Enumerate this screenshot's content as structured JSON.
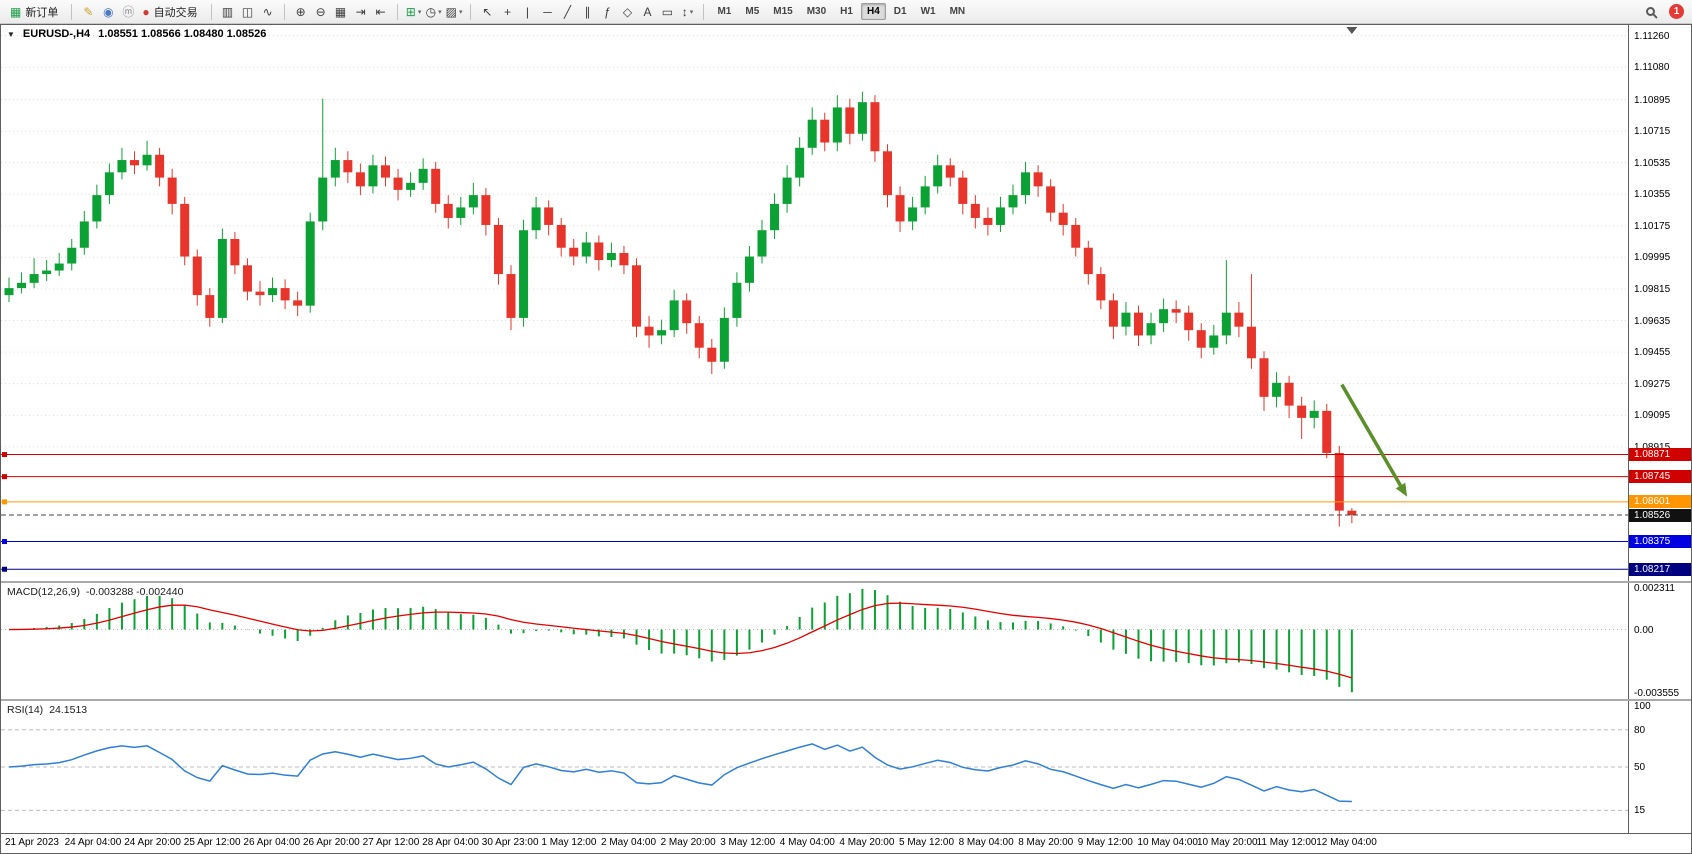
{
  "toolbar": {
    "dropdown_glyph": "▾",
    "groups": [
      {
        "name": "trade",
        "items": [
          {
            "type": "button",
            "name": "new-order-button",
            "icon": "order-form-icon",
            "glyph": "▦",
            "glyph_color": "#1f9d4b",
            "label": "新订单"
          }
        ]
      },
      {
        "name": "services",
        "items": [
          {
            "type": "icon",
            "name": "metaeditor-icon",
            "glyph": "✎",
            "glyph_color": "#c9a227"
          },
          {
            "type": "icon",
            "name": "market-watch-icon",
            "glyph": "◉",
            "glyph_color": "#4a79c6"
          },
          {
            "type": "icon",
            "name": "mql5-community-icon",
            "glyph": "ⓜ",
            "glyph_color": "#8a8a8a"
          },
          {
            "type": "button",
            "name": "auto-trading-button",
            "icon": "auto-trading-icon",
            "glyph": "●",
            "glyph_color": "#d23b34",
            "label": "自动交易"
          }
        ]
      },
      {
        "name": "chart-type",
        "items": [
          {
            "type": "icon",
            "name": "bar-chart-icon",
            "glyph": "▥"
          },
          {
            "type": "icon",
            "name": "candlestick-chart-icon",
            "glyph": "◫"
          },
          {
            "type": "icon",
            "name": "line-chart-icon",
            "glyph": "∿"
          }
        ]
      },
      {
        "name": "zoom-layout",
        "items": [
          {
            "type": "icon",
            "name": "zoom-in-icon",
            "glyph": "⊕"
          },
          {
            "type": "icon",
            "name": "zoom-out-icon",
            "glyph": "⊖"
          },
          {
            "type": "icon",
            "name": "tile-windows-icon",
            "glyph": "▦"
          },
          {
            "type": "icon",
            "name": "auto-scroll-icon",
            "glyph": "⇥"
          },
          {
            "type": "icon",
            "name": "chart-shift-icon",
            "glyph": "⇤"
          }
        ]
      },
      {
        "name": "dropdowns",
        "items": [
          {
            "type": "icon",
            "name": "indicators-icon",
            "glyph": "⊞",
            "glyph_color": "#1f9d4b",
            "dropdown": true
          },
          {
            "type": "icon",
            "name": "periods-icon",
            "glyph": "◷",
            "dropdown": true
          },
          {
            "type": "icon",
            "name": "templates-icon",
            "glyph": "▨",
            "dropdown": true
          }
        ]
      },
      {
        "name": "objects",
        "items": [
          {
            "type": "icon",
            "name": "cursor-icon",
            "glyph": "↖"
          },
          {
            "type": "icon",
            "name": "crosshair-icon",
            "glyph": "+"
          },
          {
            "type": "icon",
            "name": "vertical-line-icon",
            "glyph": "|"
          },
          {
            "type": "icon",
            "name": "horizontal-line-icon",
            "glyph": "─"
          },
          {
            "type": "icon",
            "name": "trendline-icon",
            "glyph": "╱"
          },
          {
            "type": "icon",
            "name": "equidistant-channel-icon",
            "glyph": "∥"
          },
          {
            "type": "icon",
            "name": "fibonacci-icon",
            "glyph": "ƒ"
          },
          {
            "type": "icon",
            "name": "shapes-icon",
            "glyph": "◇"
          },
          {
            "type": "icon",
            "name": "text-icon",
            "glyph": "A"
          },
          {
            "type": "icon",
            "name": "text-label-icon",
            "glyph": "▭"
          },
          {
            "type": "icon",
            "name": "arrows-icon",
            "glyph": "↕",
            "dropdown": true
          }
        ]
      }
    ],
    "timeframes": {
      "active": "H4",
      "items": [
        "M1",
        "M5",
        "M15",
        "M30",
        "H1",
        "H4",
        "D1",
        "W1",
        "MN"
      ]
    },
    "right": [
      {
        "type": "icon",
        "name": "search-icon",
        "glyph": "css-magnifier"
      },
      {
        "type": "badge",
        "name": "notifications-badge",
        "text": "1",
        "color": "#e53935"
      }
    ]
  },
  "chart": {
    "collapse_glyph": "▼",
    "title_symbol": "EURUSD-,H4",
    "title_ohlc": "1.08551 1.08566 1.08480 1.08526"
  },
  "chart_data": {
    "type": "candlestick",
    "symbol": "EURUSD-",
    "timeframe": "H4",
    "colors": {
      "up": "#0CA134",
      "down": "#E8352C",
      "grid": "#dcdcdc",
      "macd_hist": "#0CA134",
      "macd_signal": "#E60000",
      "rsi_line": "#2F7ED8"
    },
    "price_pane": {
      "ylim": [
        1.0815,
        1.1132
      ],
      "y_ticks": [
        "1.11260",
        "1.11080",
        "1.10895",
        "1.10715",
        "1.10535",
        "1.10355",
        "1.10175",
        "1.09995",
        "1.09815",
        "1.09635",
        "1.09455",
        "1.09275",
        "1.09095",
        "1.08915"
      ],
      "levels": [
        {
          "price": 1.08871,
          "label": "1.08871",
          "color": "#D10000"
        },
        {
          "price": 1.08745,
          "label": "1.08745",
          "color": "#D10000"
        },
        {
          "price": 1.08601,
          "label": "1.08601",
          "color": "#FF9500"
        },
        {
          "price": 1.08526,
          "label": "1.08526",
          "color": "#111111",
          "style": "current"
        },
        {
          "price": 1.08375,
          "label": "1.08375",
          "color": "#0000E0"
        },
        {
          "price": 1.08217,
          "label": "1.08217",
          "color": "#000080"
        }
      ],
      "arrow": {
        "from_bar": 106.2,
        "from_price": 1.0927,
        "to_bar": 111.4,
        "to_price": 1.0863,
        "color": "#5a8f29"
      },
      "shift_marker_bar": 107,
      "candles": [
        [
          1.0978,
          1.0988,
          1.0974,
          1.0982
        ],
        [
          1.0982,
          1.0991,
          1.0979,
          1.0985
        ],
        [
          1.0985,
          1.0999,
          1.0982,
          1.099
        ],
        [
          1.099,
          1.0998,
          1.0986,
          1.0992
        ],
        [
          1.0992,
          1.1002,
          1.0989,
          1.0996
        ],
        [
          1.0996,
          1.101,
          1.0992,
          1.1005
        ],
        [
          1.1005,
          1.1026,
          1.1001,
          1.102
        ],
        [
          1.102,
          1.1041,
          1.1016,
          1.1035
        ],
        [
          1.1035,
          1.1053,
          1.103,
          1.1048
        ],
        [
          1.1048,
          1.1062,
          1.1044,
          1.1055
        ],
        [
          1.1055,
          1.106,
          1.1047,
          1.1052
        ],
        [
          1.1052,
          1.1066,
          1.1049,
          1.1058
        ],
        [
          1.1058,
          1.1062,
          1.104,
          1.1045
        ],
        [
          1.1045,
          1.105,
          1.1024,
          1.103
        ],
        [
          1.103,
          1.1034,
          1.0995,
          1.1
        ],
        [
          1.1,
          1.1004,
          1.0972,
          1.0978
        ],
        [
          1.0978,
          1.0982,
          1.096,
          1.0965
        ],
        [
          1.0965,
          1.1016,
          1.0962,
          1.101
        ],
        [
          1.101,
          1.1014,
          1.099,
          1.0995
        ],
        [
          1.0995,
          1.0999,
          1.0975,
          1.098
        ],
        [
          1.098,
          1.0986,
          1.0972,
          1.0978
        ],
        [
          1.0978,
          1.0988,
          1.0974,
          1.0982
        ],
        [
          1.0982,
          1.0987,
          1.097,
          1.0975
        ],
        [
          1.0975,
          1.098,
          1.0966,
          1.0972
        ],
        [
          1.0972,
          1.1025,
          1.0968,
          1.102
        ],
        [
          1.102,
          1.109,
          1.1015,
          1.1045
        ],
        [
          1.1045,
          1.1062,
          1.104,
          1.1055
        ],
        [
          1.1055,
          1.106,
          1.1042,
          1.1048
        ],
        [
          1.1048,
          1.1053,
          1.1035,
          1.104
        ],
        [
          1.104,
          1.1058,
          1.1036,
          1.1052
        ],
        [
          1.1052,
          1.1057,
          1.104,
          1.1045
        ],
        [
          1.1045,
          1.105,
          1.1032,
          1.1038
        ],
        [
          1.1038,
          1.1048,
          1.1034,
          1.1042
        ],
        [
          1.1042,
          1.1056,
          1.1038,
          1.105
        ],
        [
          1.105,
          1.1054,
          1.1025,
          1.103
        ],
        [
          1.103,
          1.1035,
          1.1016,
          1.1022
        ],
        [
          1.1022,
          1.1034,
          1.1018,
          1.1028
        ],
        [
          1.1028,
          1.1042,
          1.1024,
          1.1035
        ],
        [
          1.1035,
          1.1039,
          1.1012,
          1.1018
        ],
        [
          1.1018,
          1.1022,
          1.0984,
          1.099
        ],
        [
          1.099,
          1.0995,
          1.0958,
          1.0965
        ],
        [
          1.0965,
          1.1021,
          1.096,
          1.1015
        ],
        [
          1.1015,
          1.1034,
          1.101,
          1.1028
        ],
        [
          1.1028,
          1.1032,
          1.1012,
          1.1018
        ],
        [
          1.1018,
          1.1022,
          1.1,
          1.1005
        ],
        [
          1.1005,
          1.101,
          1.0995,
          1.1
        ],
        [
          1.1,
          1.1014,
          1.0996,
          1.1008
        ],
        [
          1.1008,
          1.1012,
          1.0992,
          1.0998
        ],
        [
          1.0998,
          1.1008,
          1.0994,
          1.1002
        ],
        [
          1.1002,
          1.1006,
          1.099,
          1.0995
        ],
        [
          1.0995,
          1.0999,
          1.0954,
          1.096
        ],
        [
          1.096,
          1.0966,
          1.0948,
          1.0955
        ],
        [
          1.0955,
          1.0964,
          1.095,
          1.0958
        ],
        [
          1.0958,
          1.0981,
          1.0954,
          1.0975
        ],
        [
          1.0975,
          1.0979,
          1.0956,
          1.0962
        ],
        [
          1.0962,
          1.0966,
          1.0942,
          1.0948
        ],
        [
          1.0948,
          1.0953,
          1.0933,
          1.094
        ],
        [
          1.094,
          1.0971,
          1.0936,
          1.0965
        ],
        [
          1.0965,
          1.0991,
          1.096,
          1.0985
        ],
        [
          1.0985,
          1.1006,
          1.098,
          1.1
        ],
        [
          1.1,
          1.1021,
          1.0996,
          1.1015
        ],
        [
          1.1015,
          1.1036,
          1.101,
          1.103
        ],
        [
          1.103,
          1.1052,
          1.1025,
          1.1045
        ],
        [
          1.1045,
          1.1068,
          1.104,
          1.1062
        ],
        [
          1.1062,
          1.1085,
          1.1058,
          1.1078
        ],
        [
          1.1078,
          1.1082,
          1.106,
          1.1065
        ],
        [
          1.1065,
          1.1092,
          1.106,
          1.1085
        ],
        [
          1.1085,
          1.109,
          1.1064,
          1.107
        ],
        [
          1.107,
          1.1094,
          1.1066,
          1.1088
        ],
        [
          1.1088,
          1.1092,
          1.1054,
          1.106
        ],
        [
          1.106,
          1.1064,
          1.1028,
          1.1035
        ],
        [
          1.1035,
          1.104,
          1.1014,
          1.102
        ],
        [
          1.102,
          1.1034,
          1.1015,
          1.1028
        ],
        [
          1.1028,
          1.1046,
          1.1024,
          1.104
        ],
        [
          1.104,
          1.1058,
          1.1036,
          1.1052
        ],
        [
          1.1052,
          1.1056,
          1.104,
          1.1045
        ],
        [
          1.1045,
          1.1049,
          1.1024,
          1.103
        ],
        [
          1.103,
          1.1035,
          1.1016,
          1.1022
        ],
        [
          1.1022,
          1.1028,
          1.1012,
          1.1018
        ],
        [
          1.1018,
          1.1034,
          1.1014,
          1.1028
        ],
        [
          1.1028,
          1.1041,
          1.1024,
          1.1035
        ],
        [
          1.1035,
          1.1054,
          1.103,
          1.1048
        ],
        [
          1.1048,
          1.1052,
          1.1034,
          1.104
        ],
        [
          1.104,
          1.1044,
          1.102,
          1.1025
        ],
        [
          1.1025,
          1.103,
          1.1012,
          1.1018
        ],
        [
          1.1018,
          1.1022,
          1.1,
          1.1005
        ],
        [
          1.1005,
          1.1009,
          1.0984,
          1.099
        ],
        [
          1.099,
          1.0994,
          1.097,
          1.0975
        ],
        [
          1.0975,
          1.0979,
          1.0953,
          1.096
        ],
        [
          1.096,
          1.0974,
          1.0955,
          1.0968
        ],
        [
          1.0968,
          1.0972,
          1.0949,
          1.0955
        ],
        [
          1.0955,
          1.0968,
          1.095,
          1.0962
        ],
        [
          1.0962,
          1.0976,
          1.0957,
          1.097
        ],
        [
          1.097,
          1.0975,
          1.0962,
          1.0968
        ],
        [
          1.0968,
          1.0972,
          1.0952,
          1.0958
        ],
        [
          1.0958,
          1.0962,
          1.0942,
          1.0948
        ],
        [
          1.0948,
          1.0961,
          1.0944,
          1.0955
        ],
        [
          1.0955,
          1.0998,
          1.095,
          1.0968
        ],
        [
          1.0968,
          1.0974,
          1.0954,
          1.096
        ],
        [
          1.096,
          1.099,
          1.0936,
          1.0942
        ],
        [
          1.0942,
          1.0946,
          1.0912,
          1.092
        ],
        [
          1.092,
          1.0934,
          1.0914,
          1.0928
        ],
        [
          1.0928,
          1.0932,
          1.0908,
          1.0915
        ],
        [
          1.0915,
          1.092,
          1.0896,
          1.0908
        ],
        [
          1.0908,
          1.0918,
          1.0902,
          1.0912
        ],
        [
          1.0912,
          1.0916,
          1.0885,
          1.0888
        ],
        [
          1.0888,
          1.0892,
          1.0846,
          1.08551
        ],
        [
          1.08551,
          1.08566,
          1.0848,
          1.08526
        ]
      ]
    },
    "macd_pane": {
      "label": "MACD(12,26,9)",
      "values_text": "-0.003288 -0.002440",
      "fast": 12,
      "slow": 26,
      "signal": 9,
      "ylim": [
        -0.003555,
        0.002311
      ],
      "y_ticks": [
        {
          "label": "0.002311",
          "value": 0.002311
        },
        {
          "label": "0.00",
          "value": 0
        },
        {
          "label": "-0.003555",
          "value": -0.003555
        }
      ]
    },
    "rsi_pane": {
      "label": "RSI(14)",
      "value_text": "24.1513",
      "period": 14,
      "ylim": [
        0,
        100
      ],
      "levels": [
        80,
        50,
        15
      ],
      "y_ticks": [
        {
          "label": "100",
          "value": 100
        },
        {
          "label": "80",
          "value": 80
        },
        {
          "label": "50",
          "value": 50
        },
        {
          "label": "15",
          "value": 15
        }
      ]
    },
    "time_axis": {
      "labels": [
        "21 Apr 2023",
        "24 Apr 04:00",
        "24 Apr 20:00",
        "25 Apr 12:00",
        "26 Apr 04:00",
        "26 Apr 20:00",
        "27 Apr 12:00",
        "28 Apr 04:00",
        "30 Apr 23:00",
        "1 May 12:00",
        "2 May 04:00",
        "2 May 20:00",
        "3 May 12:00",
        "4 May 04:00",
        "4 May 20:00",
        "5 May 12:00",
        "8 May 04:00",
        "8 May 20:00",
        "9 May 12:00",
        "10 May 04:00",
        "10 May 20:00",
        "11 May 12:00",
        "12 May 04:00"
      ]
    }
  }
}
